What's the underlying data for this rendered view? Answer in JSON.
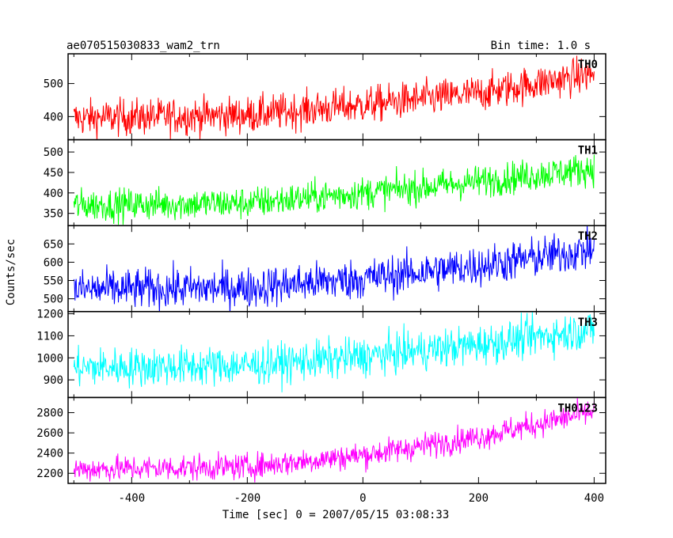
{
  "header": {
    "title": "ae070515030833_wam2_trn",
    "bin_time": "Bin time: 1.0 s"
  },
  "chart_data": {
    "type": "line",
    "xlabel": "Time [sec] 0 = 2007/05/15 03:08:33",
    "ylabel": "Counts/sec",
    "xlim": [
      -510,
      420
    ],
    "x_ticks": [
      -400,
      -200,
      0,
      200,
      400
    ],
    "x_range_data": [
      -500,
      400
    ],
    "panels": [
      {
        "name": "TH0",
        "color": "#ff0000",
        "ylim": [
          330,
          590
        ],
        "y_ticks": [
          400,
          500
        ],
        "trend": [
          [
            -500,
            395
          ],
          [
            -200,
            405
          ],
          [
            0,
            435
          ],
          [
            200,
            470
          ],
          [
            400,
            530
          ]
        ],
        "noise": 28
      },
      {
        "name": "TH1",
        "color": "#00ff00",
        "ylim": [
          320,
          530
        ],
        "y_ticks": [
          350,
          400,
          450,
          500
        ],
        "trend": [
          [
            -500,
            370
          ],
          [
            -200,
            375
          ],
          [
            0,
            400
          ],
          [
            150,
            420
          ],
          [
            400,
            460
          ]
        ],
        "noise": 20
      },
      {
        "name": "TH2",
        "color": "#0000ff",
        "ylim": [
          465,
          700
        ],
        "y_ticks": [
          500,
          550,
          600,
          650
        ],
        "trend": [
          [
            -500,
            525
          ],
          [
            -200,
            530
          ],
          [
            0,
            555
          ],
          [
            200,
            590
          ],
          [
            400,
            635
          ]
        ],
        "noise": 28
      },
      {
        "name": "TH3",
        "color": "#00ffff",
        "ylim": [
          820,
          1210
        ],
        "y_ticks": [
          900,
          1000,
          1100,
          1200
        ],
        "trend": [
          [
            -500,
            955
          ],
          [
            -200,
            965
          ],
          [
            0,
            1005
          ],
          [
            200,
            1060
          ],
          [
            400,
            1130
          ]
        ],
        "noise": 45
      },
      {
        "name": "TH0123",
        "color": "#ff00ff",
        "ylim": [
          2100,
          2950
        ],
        "y_ticks": [
          2200,
          2400,
          2600,
          2800
        ],
        "trend": [
          [
            -500,
            2240
          ],
          [
            -200,
            2265
          ],
          [
            0,
            2380
          ],
          [
            200,
            2560
          ],
          [
            400,
            2810
          ]
        ],
        "noise": 65
      }
    ]
  }
}
